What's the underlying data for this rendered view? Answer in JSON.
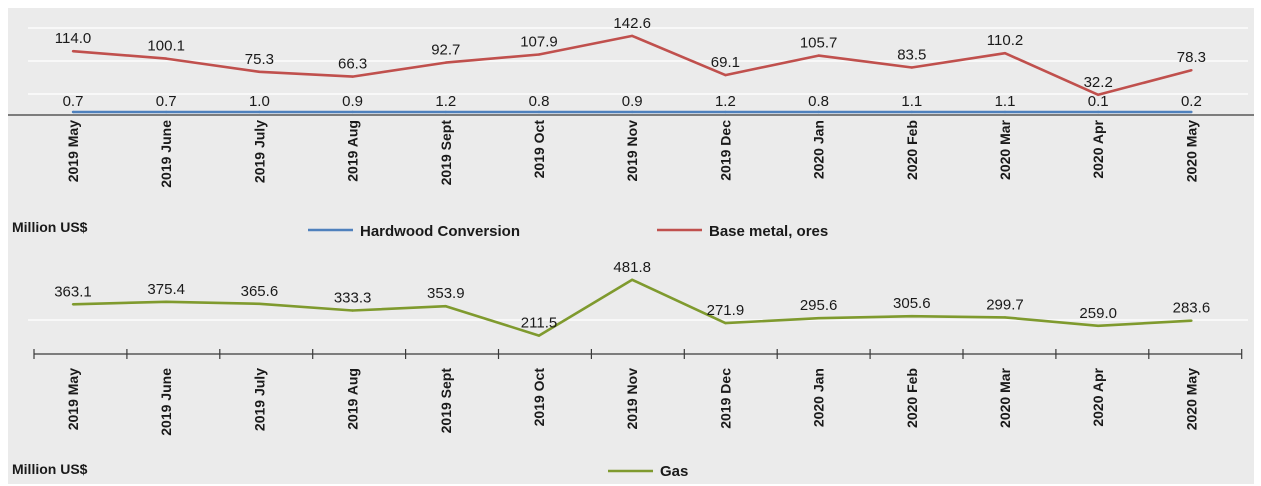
{
  "chart_data": [
    {
      "type": "line",
      "categories": [
        "2019 May",
        "2019 June",
        "2019 July",
        "2019 Aug",
        "2019 Sept",
        "2019 Oct",
        "2019 Nov",
        "2019 Dec",
        "2020 Jan",
        "2020 Feb",
        "2020 Mar",
        "2020 Apr",
        "2020 May"
      ],
      "series": [
        {
          "name": "Hardwood Conversion",
          "color": "#4f81bd",
          "values": [
            0.7,
            0.7,
            1.0,
            0.9,
            1.2,
            0.8,
            0.9,
            1.2,
            0.8,
            1.1,
            1.1,
            0.1,
            0.2
          ],
          "labels": [
            "0.7",
            "0.7",
            "1.0",
            "0.9",
            "1.2",
            "0.8",
            "0.9",
            "1.2",
            "0.8",
            "1.1",
            "1.1",
            "0.1",
            "0.2"
          ]
        },
        {
          "name": "Base metal, ores",
          "color": "#c0504d",
          "values": [
            114.0,
            100.1,
            75.3,
            66.3,
            92.7,
            107.9,
            142.6,
            69.1,
            105.7,
            83.5,
            110.2,
            32.2,
            78.3
          ],
          "labels": [
            "114.0",
            "100.1",
            "75.3",
            "66.3",
            "92.7",
            "107.9",
            "142.6",
            "69.1",
            "105.7",
            "83.5",
            "110.2",
            "32.2",
            "78.3"
          ]
        }
      ],
      "ylabel": "Million US$",
      "ylim": [
        0,
        150
      ],
      "grid": true,
      "legend_position": "bottom"
    },
    {
      "type": "line",
      "categories": [
        "2019 May",
        "2019 June",
        "2019 July",
        "2019 Aug",
        "2019 Sept",
        "2019 Oct",
        "2019 Nov",
        "2019 Dec",
        "2020 Jan",
        "2020 Feb",
        "2020 Mar",
        "2020 Apr",
        "2020 May"
      ],
      "series": [
        {
          "name": "Gas",
          "color": "#7f9a2e",
          "values": [
            363.1,
            375.4,
            365.6,
            333.3,
            353.9,
            211.5,
            481.8,
            271.9,
            295.6,
            305.6,
            299.7,
            259.0,
            283.6
          ],
          "labels": [
            "363.1",
            "375.4",
            "365.6",
            "333.3",
            "353.9",
            "211.5",
            "481.8",
            "271.9",
            "295.6",
            "305.6",
            "299.7",
            "259.0",
            "283.6"
          ]
        }
      ],
      "ylabel": "Million US$",
      "ylim": [
        0,
        500
      ],
      "grid": true,
      "legend_position": "bottom"
    }
  ]
}
